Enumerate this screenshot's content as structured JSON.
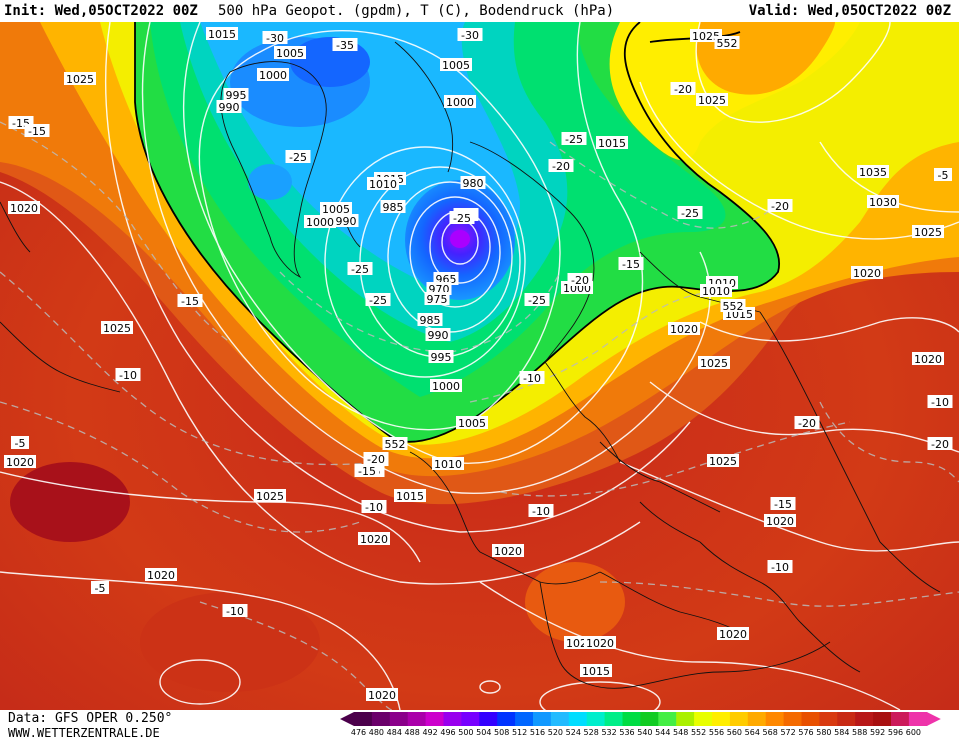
{
  "header": {
    "init_label": "Init: Wed,05OCT2022 00Z",
    "title": "500 hPa Geopot. (gpdm), T (C), Bodendruck (hPa)",
    "valid_label": "Valid: Wed,05OCT2022 00Z"
  },
  "footer": {
    "data_source": "Data: GFS OPER 0.250°",
    "website": "WWW.WETTERZENTRALE.DE"
  },
  "legend": {
    "values": [
      "476",
      "480",
      "484",
      "488",
      "492",
      "496",
      "500",
      "504",
      "508",
      "512",
      "516",
      "520",
      "524",
      "528",
      "532",
      "536",
      "540",
      "544",
      "548",
      "552",
      "556",
      "560",
      "564",
      "568",
      "572",
      "576",
      "580",
      "584",
      "588",
      "592",
      "596",
      "600"
    ],
    "colors": [
      "#4b004b",
      "#6a006a",
      "#8a008a",
      "#aa00aa",
      "#cc00cc",
      "#9900ee",
      "#7700ff",
      "#3300ff",
      "#0033ff",
      "#0066ff",
      "#1199ff",
      "#22bbff",
      "#00ddff",
      "#00eecc",
      "#00ee88",
      "#00dd44",
      "#11cc22",
      "#44ee44",
      "#aaf000",
      "#e8ff00",
      "#ffee00",
      "#ffcc00",
      "#ffaa00",
      "#ff8800",
      "#f46a00",
      "#e85000",
      "#d83a10",
      "#c82a14",
      "#b81818",
      "#a81010",
      "#cc1a5a",
      "#ee33aa"
    ]
  },
  "pressure_labels": [
    {
      "text": "1015",
      "id": "p01"
    },
    {
      "text": "1005",
      "id": "p02"
    },
    {
      "text": "1000",
      "id": "p03"
    },
    {
      "text": "995",
      "id": "p04"
    },
    {
      "text": "990",
      "id": "p05"
    },
    {
      "text": "1015",
      "id": "p06"
    },
    {
      "text": "1010",
      "id": "p07"
    },
    {
      "text": "1005",
      "id": "p08"
    },
    {
      "text": "1000",
      "id": "p09"
    },
    {
      "text": "990",
      "id": "p10"
    },
    {
      "text": "985",
      "id": "p11"
    },
    {
      "text": "1005",
      "id": "p12"
    },
    {
      "text": "1000",
      "id": "p13"
    },
    {
      "text": "980",
      "id": "p14"
    },
    {
      "text": "965",
      "id": "p15"
    },
    {
      "text": "970",
      "id": "p16"
    },
    {
      "text": "975",
      "id": "p17"
    },
    {
      "text": "985",
      "id": "p18"
    },
    {
      "text": "990",
      "id": "p19"
    },
    {
      "text": "995",
      "id": "p20"
    },
    {
      "text": "1000",
      "id": "p21"
    },
    {
      "text": "1005",
      "id": "p22"
    },
    {
      "text": "1010",
      "id": "p23"
    },
    {
      "text": "1015",
      "id": "p24"
    },
    {
      "text": "1020",
      "id": "p25"
    },
    {
      "text": "1025",
      "id": "p26"
    },
    {
      "text": "1020",
      "id": "p27"
    },
    {
      "text": "1020",
      "id": "p28"
    },
    {
      "text": "1020",
      "id": "p29"
    },
    {
      "text": "1025",
      "id": "p30"
    },
    {
      "text": "1015",
      "id": "p31"
    },
    {
      "text": "1020",
      "id": "p32"
    },
    {
      "text": "1015",
      "id": "p33"
    },
    {
      "text": "1010",
      "id": "p34"
    },
    {
      "text": "1000",
      "id": "p35"
    },
    {
      "text": "1010",
      "id": "p36"
    },
    {
      "text": "1015",
      "id": "p37"
    },
    {
      "text": "1020",
      "id": "p38"
    },
    {
      "text": "1025",
      "id": "p39"
    },
    {
      "text": "1025",
      "id": "p40"
    },
    {
      "text": "1020",
      "id": "p41"
    },
    {
      "text": "1020",
      "id": "p42"
    },
    {
      "text": "1020",
      "id": "p43"
    },
    {
      "text": "1015",
      "id": "p44"
    },
    {
      "text": "1020",
      "id": "p45"
    },
    {
      "text": "1025",
      "id": "p46"
    },
    {
      "text": "1025",
      "id": "p47"
    },
    {
      "text": "1035",
      "id": "p48"
    },
    {
      "text": "1030",
      "id": "p49"
    },
    {
      "text": "1025",
      "id": "p50"
    },
    {
      "text": "1020",
      "id": "p51"
    },
    {
      "text": "1020",
      "id": "p52"
    },
    {
      "text": "1025",
      "id": "p53"
    },
    {
      "text": "1020",
      "id": "p54"
    },
    {
      "text": "1015",
      "id": "p55"
    }
  ],
  "temperature_labels": [
    {
      "text": "-30",
      "id": "t01"
    },
    {
      "text": "-35",
      "id": "t02"
    },
    {
      "text": "-30",
      "id": "t03"
    },
    {
      "text": "-25",
      "id": "t04"
    },
    {
      "text": "-25",
      "id": "t05"
    },
    {
      "text": "-25",
      "id": "t06"
    },
    {
      "text": "-25",
      "id": "t07"
    },
    {
      "text": "-20",
      "id": "t08"
    },
    {
      "text": "-25",
      "id": "t09"
    },
    {
      "text": "-20",
      "id": "t10"
    },
    {
      "text": "-25",
      "id": "t11"
    },
    {
      "text": "-20",
      "id": "t12"
    },
    {
      "text": "-15",
      "id": "t13"
    },
    {
      "text": "-15",
      "id": "t14"
    },
    {
      "text": "-15",
      "id": "t15"
    },
    {
      "text": "-15",
      "id": "t16"
    },
    {
      "text": "-10",
      "id": "t17"
    },
    {
      "text": "-10",
      "id": "t18"
    },
    {
      "text": "-10",
      "id": "t19"
    },
    {
      "text": "-5",
      "id": "t20"
    },
    {
      "text": "-5",
      "id": "t21"
    },
    {
      "text": "-10",
      "id": "t22"
    },
    {
      "text": "-10",
      "id": "t23"
    },
    {
      "text": "-15",
      "id": "t24"
    },
    {
      "text": "-20",
      "id": "t25"
    },
    {
      "text": "-20",
      "id": "t26"
    },
    {
      "text": "-20",
      "id": "t27"
    },
    {
      "text": "-20",
      "id": "t28"
    },
    {
      "text": "-15",
      "id": "t29"
    },
    {
      "text": "-10",
      "id": "t30"
    },
    {
      "text": "-10",
      "id": "t31"
    },
    {
      "text": "-20",
      "id": "t32"
    },
    {
      "text": "-5",
      "id": "t33"
    },
    {
      "text": "-15",
      "id": "t34"
    },
    {
      "text": "-25",
      "id": "t35"
    },
    {
      "text": "-20",
      "id": "t36"
    }
  ],
  "height_labels": [
    {
      "text": "552",
      "id": "h01"
    },
    {
      "text": "552",
      "id": "h02"
    },
    {
      "text": "552",
      "id": "h03"
    }
  ]
}
